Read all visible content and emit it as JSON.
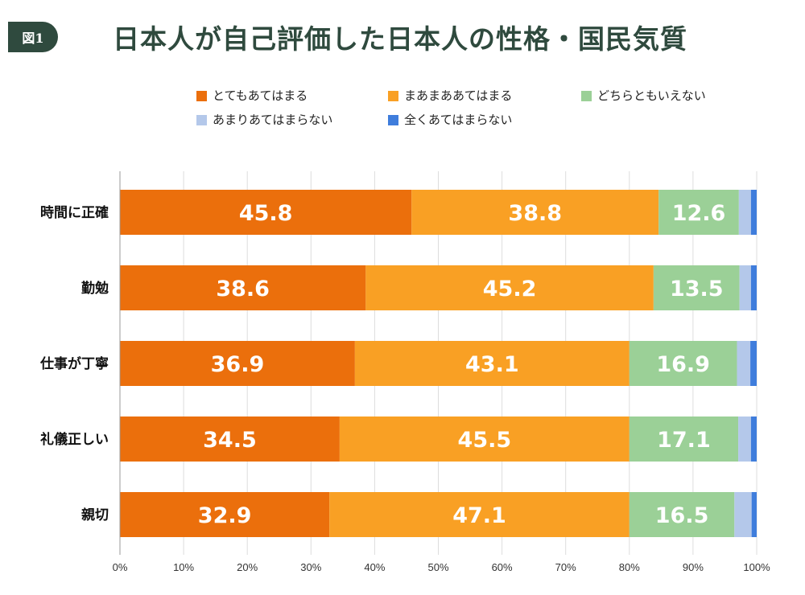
{
  "figure_badge": "図1",
  "chart_data": {
    "type": "bar",
    "orientation": "horizontal",
    "stacked": true,
    "title": "日本人が自己評価した日本人の性格・国民気質",
    "categories": [
      "時間に正確",
      "勤勉",
      "仕事が丁寧",
      "礼儀正しい",
      "親切"
    ],
    "series": [
      {
        "name": "とてもあてはまる",
        "color": "#eb6f0c",
        "values": [
          45.8,
          38.6,
          36.9,
          34.5,
          32.9
        ]
      },
      {
        "name": "まあまああてはまる",
        "color": "#f9a024",
        "values": [
          38.8,
          45.2,
          43.1,
          45.5,
          47.1
        ]
      },
      {
        "name": "どちらともいえない",
        "color": "#9bd097",
        "values": [
          12.6,
          13.5,
          16.9,
          17.1,
          16.5
        ]
      },
      {
        "name": "あまりあてはまらない",
        "color": "#b4c8ea",
        "values": [
          1.9,
          1.8,
          2.1,
          2.0,
          2.7
        ]
      },
      {
        "name": "全くあてはまらない",
        "color": "#3f7ddc",
        "values": [
          0.9,
          0.9,
          1.0,
          0.9,
          0.8
        ]
      }
    ],
    "labeled_series": [
      0,
      1,
      2
    ],
    "xlim": [
      0,
      100
    ],
    "xticks": [
      "0%",
      "10%",
      "20%",
      "30%",
      "40%",
      "50%",
      "60%",
      "70%",
      "80%",
      "90%",
      "100%"
    ],
    "grid": true,
    "legend_position": "top"
  }
}
